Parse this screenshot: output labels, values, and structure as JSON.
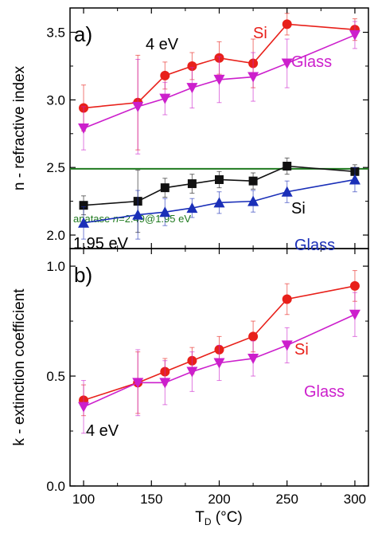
{
  "colors": {
    "red": "#e8201a",
    "magenta": "#cc1fcc",
    "black": "#111111",
    "blue": "#1a2fb8",
    "green": "#1f7a1f"
  },
  "chart_data": [
    {
      "type": "line",
      "panel_label": "a)",
      "ylabel": "n - refractive index",
      "xlim": [
        90,
        310
      ],
      "ylim": [
        1.9,
        3.68
      ],
      "x_ticks": [
        "100",
        "150",
        "200",
        "250",
        "300"
      ],
      "y_ticks": [
        "2.0",
        "2.5",
        "3.0",
        "3.5"
      ],
      "x": [
        100,
        140,
        160,
        180,
        200,
        225,
        250,
        300
      ],
      "series": [
        {
          "name": "Si",
          "group": "4 eV",
          "color": "red",
          "marker": "circle",
          "values": [
            2.94,
            2.98,
            3.18,
            3.25,
            3.31,
            3.27,
            3.56,
            3.52
          ],
          "errors": [
            0.17,
            0.35,
            0.1,
            0.1,
            0.12,
            0.18,
            0.08,
            0.08
          ]
        },
        {
          "name": "Glass",
          "group": "4 eV",
          "color": "magenta",
          "marker": "triangle-down",
          "values": [
            2.79,
            2.95,
            3.01,
            3.09,
            3.15,
            3.17,
            3.27,
            3.48
          ],
          "errors": [
            0.16,
            0.35,
            0.12,
            0.15,
            0.17,
            0.18,
            0.18,
            0.1
          ]
        },
        {
          "name": "Si",
          "group": "1.95 eV",
          "color": "black",
          "marker": "square",
          "values": [
            2.22,
            2.25,
            2.35,
            2.38,
            2.41,
            2.4,
            2.51,
            2.47
          ],
          "errors": [
            0.07,
            0.23,
            0.07,
            0.07,
            0.06,
            0.06,
            0.06,
            0.05
          ]
        },
        {
          "name": "Glass",
          "group": "1.95 eV",
          "color": "blue",
          "marker": "triangle-up",
          "values": [
            2.09,
            2.15,
            2.17,
            2.2,
            2.24,
            2.25,
            2.32,
            2.41
          ],
          "errors": [
            0.12,
            0.18,
            0.1,
            0.07,
            0.08,
            0.08,
            0.08,
            0.09
          ]
        }
      ],
      "reference_line": {
        "y": 2.49,
        "color": "green",
        "text_prefix": "anatase ",
        "text_var": "n",
        "text_suffix": "=2.49@1.95 eV"
      },
      "annotations": [
        "4 eV",
        "Si",
        "Glass",
        "Si",
        "1.95 eV",
        "Glass"
      ]
    },
    {
      "type": "line",
      "panel_label": "b)",
      "ylabel": "k - extinction coefficient",
      "xlabel_main": "T",
      "xlabel_sub": "D",
      "xlabel_unit": " (°C)",
      "xlim": [
        90,
        310
      ],
      "ylim": [
        0.0,
        1.08
      ],
      "x_ticks": [
        "100",
        "150",
        "200",
        "250",
        "300"
      ],
      "y_ticks": [
        "0.0",
        "0.5",
        "1.0"
      ],
      "x": [
        100,
        140,
        160,
        180,
        200,
        225,
        250,
        300
      ],
      "series": [
        {
          "name": "Si",
          "group": "4 eV",
          "color": "red",
          "marker": "circle",
          "values": [
            0.39,
            0.47,
            0.52,
            0.57,
            0.62,
            0.68,
            0.85,
            0.91
          ],
          "errors": [
            0.07,
            0.14,
            0.06,
            0.06,
            0.06,
            0.07,
            0.07,
            0.07
          ]
        },
        {
          "name": "Glass",
          "group": "4 eV",
          "color": "magenta",
          "marker": "triangle-down",
          "values": [
            0.36,
            0.47,
            0.47,
            0.52,
            0.56,
            0.58,
            0.64,
            0.78
          ],
          "errors": [
            0.12,
            0.15,
            0.1,
            0.09,
            0.08,
            0.08,
            0.08,
            0.1
          ]
        }
      ],
      "annotations": [
        "Si",
        "Glass",
        "4 eV"
      ]
    }
  ]
}
